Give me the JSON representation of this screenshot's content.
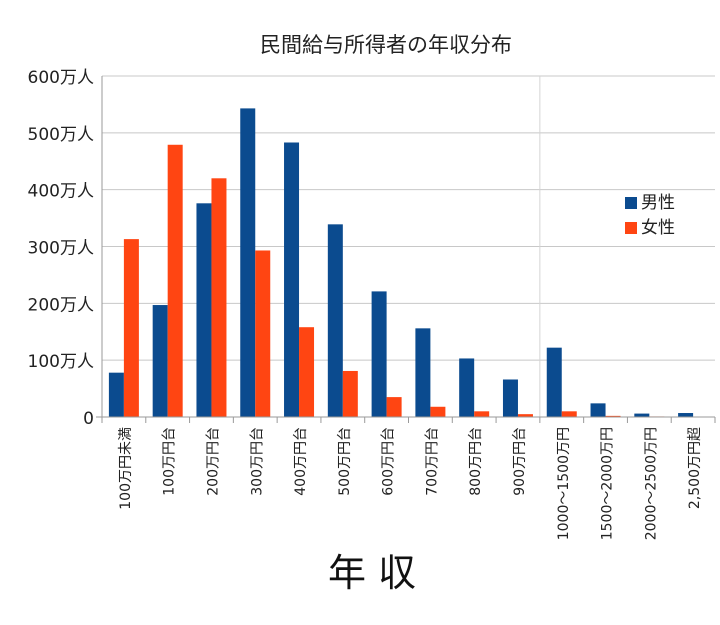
{
  "chart_data": {
    "type": "bar",
    "title": "民間給与所得者の年収分布",
    "xlabel": "年 収",
    "ylabel": "",
    "ylim": [
      0,
      600
    ],
    "yticks": [
      {
        "value": 0,
        "label": "0"
      },
      {
        "value": 100,
        "label": "100万人"
      },
      {
        "value": 200,
        "label": "200万人"
      },
      {
        "value": 300,
        "label": "300万人"
      },
      {
        "value": 400,
        "label": "400万人"
      },
      {
        "value": 500,
        "label": "500万人"
      },
      {
        "value": 600,
        "label": "600万人"
      }
    ],
    "grid": true,
    "legend_position": "right",
    "categories": [
      "100万円未満",
      "100万円台",
      "200万円台",
      "300万円台",
      "400万円台",
      "500万円台",
      "600万円台",
      "700万円台",
      "800万円台",
      "900万円台",
      "1000～1500万円",
      "1500～2000万円",
      "2000～2500万円",
      "2,500万円超"
    ],
    "series": [
      {
        "name": "男性",
        "color": "#0b4b8f",
        "values": [
          78,
          197,
          376,
          543,
          483,
          339,
          221,
          156,
          103,
          66,
          122,
          24,
          6,
          7
        ]
      },
      {
        "name": "女性",
        "color": "#ff4512",
        "values": [
          313,
          479,
          420,
          293,
          158,
          81,
          35,
          18,
          10,
          5,
          10,
          2,
          1,
          0
        ]
      }
    ]
  }
}
